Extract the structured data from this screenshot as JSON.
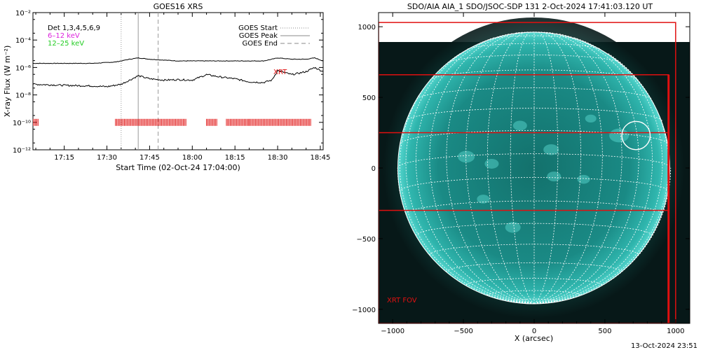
{
  "left_panel": {
    "title": "GOES16 XRS",
    "ylabel": "X-ray Flux (W m⁻²)",
    "xlabel": "Start Time (02-Oct-24 17:04:00)",
    "det_label": "Det 1,3,4,5,6,9",
    "band_low": "6–12 keV",
    "band_high": "12–25 keV",
    "legend": {
      "start": "GOES Start",
      "peak": "GOES Peak",
      "end": "GOES End"
    },
    "xrt_marker": "XRT",
    "y_tick_labels": [
      "10⁻²",
      "10⁻⁴",
      "10⁻⁶",
      "10⁻⁸",
      "10⁻¹⁰",
      "10⁻¹²"
    ],
    "x_tick_labels": [
      "17:15",
      "17:30",
      "17:45",
      "18:00",
      "18:15",
      "18:30",
      "18:45"
    ]
  },
  "right_panel": {
    "title": "SDO/AIA AIA_1 SDO/JSOC-SDP 131  2-Oct-2024 17:41:03.120 UT",
    "xlabel": "X (arcsec)",
    "fov_label": "XRT FOV",
    "x_tick_labels": [
      "−1000",
      "−500",
      "0",
      "500",
      "1000"
    ],
    "y_tick_labels": [
      "1000",
      "500",
      "0",
      "−500",
      "−1000"
    ]
  },
  "footer_timestamp": "13-Oct-2024 23:51",
  "colors": {
    "marker_red": "#e01010",
    "band_low": "#dd22dd",
    "band_high": "#22cc22",
    "sun": "#18a8a0"
  },
  "chart_data": [
    {
      "type": "line",
      "title": "GOES16 XRS",
      "xlabel": "Start Time (02-Oct-24 17:04:00)",
      "ylabel": "X-ray Flux (W m^-2)",
      "x_range": [
        "17:04",
        "18:46"
      ],
      "y_range": [
        1e-12,
        0.01
      ],
      "y_scale": "log",
      "series": [
        {
          "x": [
            "17:04",
            "17:15",
            "17:25",
            "17:33",
            "17:38",
            "17:41",
            "17:45",
            "17:55",
            "18:05",
            "18:15",
            "18:25",
            "18:28",
            "18:30",
            "18:35",
            "18:40",
            "18:43",
            "18:46"
          ],
          "values": [
            2e-06,
            2e-06,
            2e-06,
            2.5e-06,
            4e-06,
            5e-06,
            4e-06,
            3e-06,
            3e-06,
            3e-06,
            3e-06,
            4e-06,
            5e-06,
            4e-06,
            4e-06,
            5e-06,
            3e-06
          ]
        },
        {
          "x": [
            "17:04",
            "17:15",
            "17:25",
            "17:30",
            "17:35",
            "17:38",
            "17:41",
            "17:45",
            "17:50",
            "17:55",
            "18:00",
            "18:05",
            "18:10",
            "18:15",
            "18:20",
            "18:25",
            "18:28",
            "18:30",
            "18:35",
            "18:40",
            "18:43",
            "18:46"
          ],
          "values": [
            6e-08,
            5e-08,
            4.5e-08,
            4e-08,
            6e-08,
            1.2e-07,
            2.5e-07,
            1.5e-07,
            1.2e-07,
            1.3e-07,
            1.2e-07,
            3e-07,
            2e-07,
            1.5e-07,
            9e-08,
            8e-08,
            1.2e-07,
            6e-07,
            3e-07,
            5e-07,
            1e-06,
            5e-07
          ]
        }
      ],
      "vertical_markers": {
        "goes_start": "17:35",
        "goes_peak": "17:41",
        "goes_end": "17:48"
      },
      "coverage_intervals": [
        [
          "17:04",
          "17:06"
        ],
        [
          "17:33",
          "17:58"
        ],
        [
          "18:05",
          "18:09"
        ],
        [
          "18:12",
          "18:20"
        ],
        [
          "18:20",
          "18:42"
        ]
      ]
    },
    {
      "type": "image",
      "title": "SDO/AIA AIA_1 SDO/JSOC-SDP 131  2-Oct-2024 17:41:03.120 UT",
      "xlabel": "X (arcsec)",
      "x_range": [
        -1100,
        1100
      ],
      "y_range": [
        -1100,
        1100
      ],
      "solar_radius_arcsec": 965,
      "xrt_fov_boxes": [
        {
          "x": [
            -1100,
            1000
          ],
          "y": [
            -1100,
            1030
          ]
        },
        {
          "x": [
            -1100,
            950
          ],
          "y": [
            -1100,
            660
          ]
        },
        {
          "x": [
            -1100,
            950
          ],
          "y": [
            -300,
            250
          ]
        }
      ],
      "highlight_circle": {
        "x": 720,
        "y": 230,
        "r": 100
      }
    }
  ]
}
